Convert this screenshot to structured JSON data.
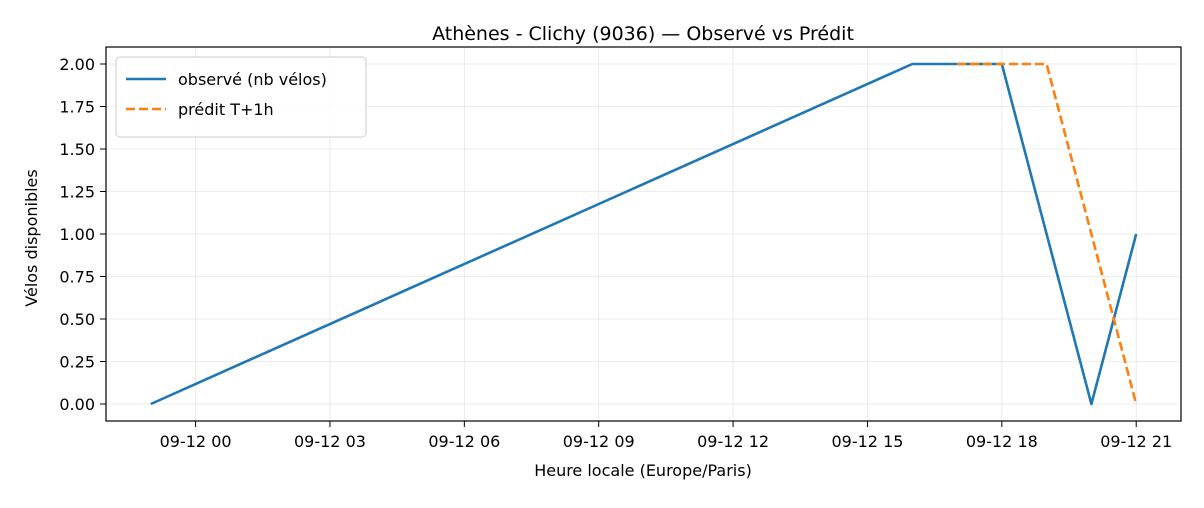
{
  "chart_data": {
    "type": "line",
    "title": "Athènes - Clichy (9036) — Observé vs Prédit",
    "xlabel": "Heure locale (Europe/Paris)",
    "ylabel": "Vélos disponibles",
    "x_ticks": [
      "09-12 00",
      "09-12 03",
      "09-12 06",
      "09-12 09",
      "09-12 12",
      "09-12 15",
      "09-12 18",
      "09-12 21"
    ],
    "y_ticks": [
      "0.00",
      "0.25",
      "0.50",
      "0.75",
      "1.00",
      "1.25",
      "1.50",
      "1.75",
      "2.00"
    ],
    "xlim": [
      "2025-09-11 22:00",
      "2025-09-12 22:00"
    ],
    "ylim": [
      -0.1,
      2.1
    ],
    "grid": true,
    "legend_position": "top-left",
    "series": [
      {
        "name": "observé (nb vélos)",
        "color": "#1f77b4",
        "style": "solid",
        "points": [
          {
            "x": "2025-09-11 23:00",
            "y": 0
          },
          {
            "x": "2025-09-12 16:00",
            "y": 2
          },
          {
            "x": "2025-09-12 18:00",
            "y": 2
          },
          {
            "x": "2025-09-12 20:00",
            "y": 0
          },
          {
            "x": "2025-09-12 21:00",
            "y": 1
          }
        ]
      },
      {
        "name": "prédit T+1h",
        "color": "#ff7f0e",
        "style": "dashed",
        "points": [
          {
            "x": "2025-09-12 17:00",
            "y": 2
          },
          {
            "x": "2025-09-12 19:00",
            "y": 2
          },
          {
            "x": "2025-09-12 21:00",
            "y": 0
          }
        ]
      }
    ]
  }
}
